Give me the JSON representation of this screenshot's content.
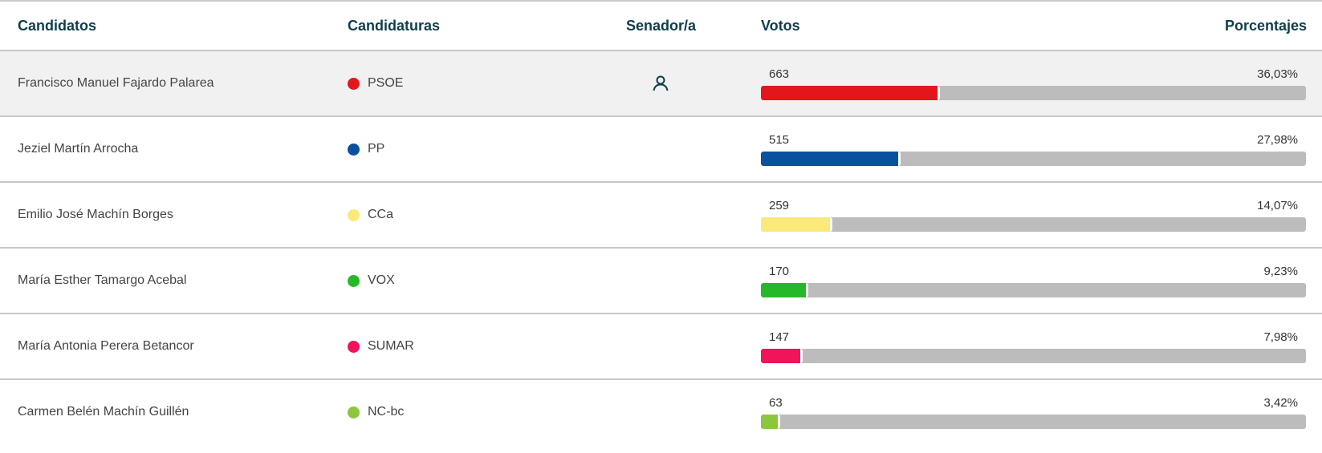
{
  "header": {
    "candidatos": "Candidatos",
    "candidaturas": "Candidaturas",
    "senador": "Senador/a",
    "votos": "Votos",
    "porcentajes": "Porcentajes"
  },
  "rows": [
    {
      "name": "Francisco Manuel Fajardo Palarea",
      "party": "PSOE",
      "color": "#e3171b",
      "votes": "663",
      "pct": "36,03%",
      "pct_value": 36.03,
      "elected": true
    },
    {
      "name": "Jeziel Martín Arrocha",
      "party": "PP",
      "color": "#0a509e",
      "votes": "515",
      "pct": "27,98%",
      "pct_value": 27.98,
      "elected": false
    },
    {
      "name": "Emilio José Machín Borges",
      "party": "CCa",
      "color": "#fbe97a",
      "votes": "259",
      "pct": "14,07%",
      "pct_value": 14.07,
      "elected": false
    },
    {
      "name": "María Esther Tamargo Acebal",
      "party": "VOX",
      "color": "#27b82a",
      "votes": "170",
      "pct": "9,23%",
      "pct_value": 9.23,
      "elected": false
    },
    {
      "name": "María Antonia Perera Betancor",
      "party": "SUMAR",
      "color": "#f0145a",
      "votes": "147",
      "pct": "7,98%",
      "pct_value": 7.98,
      "elected": false
    },
    {
      "name": "Carmen Belén Machín Guillén",
      "party": "NC-bc",
      "color": "#8cc63f",
      "votes": "63",
      "pct": "3,42%",
      "pct_value": 3.42,
      "elected": false
    }
  ],
  "icons": {
    "senador": "person-icon"
  }
}
